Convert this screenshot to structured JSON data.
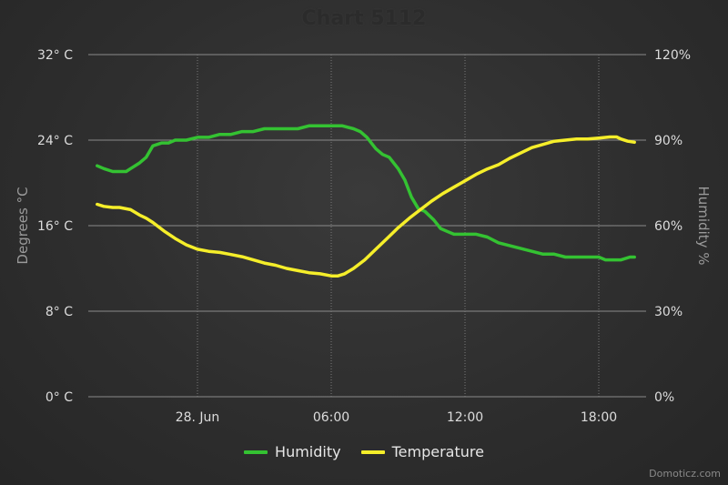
{
  "chart_data": {
    "type": "line",
    "title": "Chart 5112",
    "x_ticks": [
      "28. Jun",
      "06:00",
      "12:00",
      "18:00"
    ],
    "left_axis": {
      "label": "Degrees °C",
      "ticks": [
        "0° C",
        "8° C",
        "16° C",
        "24° C",
        "32° C"
      ],
      "ylim": [
        0,
        32
      ]
    },
    "right_axis": {
      "label": "Humidity %",
      "ticks": [
        "0%",
        "30%",
        "60%",
        "90%",
        "120%"
      ],
      "ylim": [
        0,
        120
      ]
    },
    "grid": true,
    "legend_position": "bottom-center",
    "series": [
      {
        "name": "Humidity",
        "axis": "right",
        "color": "#34c232",
        "x_hours": [
          -4.5,
          -4.2,
          -3.8,
          -3.5,
          -3.2,
          -3.0,
          -2.6,
          -2.3,
          -2.0,
          -1.6,
          -1.3,
          -1.0,
          -0.5,
          0,
          0.5,
          1.0,
          1.5,
          2.0,
          2.5,
          3.0,
          3.5,
          4.0,
          4.5,
          5.0,
          5.5,
          5.8,
          6.0,
          6.5,
          7.0,
          7.3,
          7.6,
          8.0,
          8.3,
          8.6,
          9.0,
          9.3,
          9.6,
          9.9,
          10.2,
          10.6,
          10.9,
          11.2,
          11.5,
          12.0,
          12.5,
          13.0,
          13.5,
          14.0,
          14.5,
          15.0,
          15.5,
          16.0,
          16.5,
          17.0,
          17.5,
          18.0,
          18.3,
          18.7,
          19.0,
          19.4,
          19.6
        ],
        "values": [
          81,
          80,
          79,
          79,
          79,
          80,
          82,
          84,
          88,
          89,
          89,
          90,
          90,
          91,
          91,
          92,
          92,
          93,
          93,
          94,
          94,
          94,
          94,
          95,
          95,
          95,
          95,
          95,
          94,
          93,
          91,
          87,
          85,
          84,
          80,
          76,
          70,
          66,
          65,
          62,
          59,
          58,
          57,
          57,
          57,
          56,
          54,
          53,
          52,
          51,
          50,
          50,
          49,
          49,
          49,
          49,
          48,
          48,
          48,
          49,
          49
        ]
      },
      {
        "name": "Temperature",
        "axis": "left",
        "color": "#f5ee2a",
        "x_hours": [
          -4.5,
          -4.2,
          -3.8,
          -3.5,
          -3.0,
          -2.6,
          -2.3,
          -2.0,
          -1.5,
          -1.0,
          -0.5,
          0,
          0.5,
          1.0,
          1.5,
          2.0,
          2.5,
          3.0,
          3.5,
          4.0,
          4.5,
          5.0,
          5.5,
          6.0,
          6.3,
          6.6,
          7.0,
          7.5,
          8.0,
          8.5,
          9.0,
          9.5,
          10.0,
          10.5,
          11.0,
          11.5,
          12.0,
          12.5,
          13.0,
          13.5,
          14.0,
          14.5,
          15.0,
          15.5,
          16.0,
          16.5,
          17.0,
          17.5,
          18.0,
          18.5,
          18.8,
          19.0,
          19.3,
          19.6
        ],
        "values": [
          18.0,
          17.8,
          17.7,
          17.7,
          17.5,
          17.0,
          16.7,
          16.3,
          15.5,
          14.8,
          14.2,
          13.8,
          13.6,
          13.5,
          13.3,
          13.1,
          12.8,
          12.5,
          12.3,
          12.0,
          11.8,
          11.6,
          11.5,
          11.3,
          11.3,
          11.5,
          12.0,
          12.8,
          13.8,
          14.8,
          15.8,
          16.7,
          17.5,
          18.3,
          19.0,
          19.6,
          20.2,
          20.8,
          21.3,
          21.7,
          22.3,
          22.8,
          23.3,
          23.6,
          23.9,
          24.0,
          24.1,
          24.1,
          24.2,
          24.3,
          24.3,
          24.1,
          23.9,
          23.8
        ]
      }
    ]
  },
  "credit": "Domoticz.com"
}
